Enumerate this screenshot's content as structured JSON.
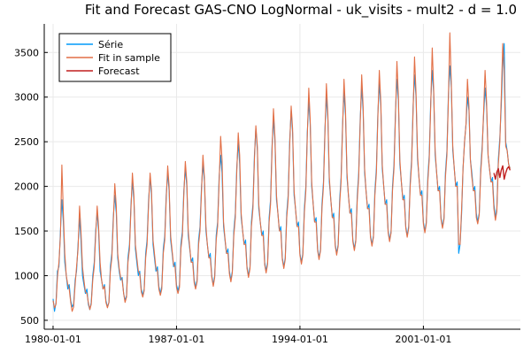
{
  "chart_data": {
    "type": "line",
    "title": "Fit and Forecast GAS-CNO LogNormal - uk_visits - mult2 - d = 1.0",
    "xlabel": "",
    "ylabel": "",
    "x_ticks": [
      "1980-01-01",
      "1987-01-01",
      "1994-01-01",
      "2001-01-01"
    ],
    "y_ticks": [
      "500",
      "1000",
      "1500",
      "2000",
      "2500",
      "3000",
      "3500"
    ],
    "xlim": [
      "1979-07-01",
      "2006-07-01"
    ],
    "ylim": [
      400,
      3820
    ],
    "grid": true,
    "legend_position": "top-left",
    "frequency": "monthly",
    "series": [
      {
        "name": "Série",
        "color": "#009af9",
        "start": "1980-01-01",
        "values": [
          740,
          600,
          700,
          1050,
          1100,
          1500,
          1850,
          1600,
          1150,
          1000,
          850,
          900,
          720,
          650,
          680,
          950,
          1050,
          1350,
          1650,
          1400,
          1000,
          900,
          800,
          850,
          680,
          620,
          700,
          1000,
          1150,
          1500,
          1700,
          1500,
          1050,
          950,
          850,
          900,
          720,
          650,
          700,
          1100,
          1250,
          1650,
          1900,
          1700,
          1200,
          1050,
          950,
          980,
          800,
          720,
          780,
          1200,
          1350,
          1800,
          2050,
          1850,
          1300,
          1150,
          1000,
          1050,
          850,
          780,
          850,
          1250,
          1400,
          1850,
          2100,
          1900,
          1350,
          1200,
          1050,
          1100,
          880,
          800,
          880,
          1300,
          1450,
          1900,
          2150,
          1950,
          1400,
          1250,
          1100,
          1150,
          900,
          830,
          900,
          1350,
          1500,
          1950,
          2200,
          2000,
          1450,
          1300,
          1150,
          1200,
          950,
          870,
          950,
          1400,
          1550,
          2000,
          2250,
          2050,
          1500,
          1350,
          1200,
          1250,
          1000,
          900,
          1000,
          1450,
          1600,
          2100,
          2350,
          2150,
          1550,
          1400,
          1250,
          1300,
          1050,
          950,
          1050,
          1500,
          1700,
          2200,
          2500,
          2250,
          1650,
          1500,
          1350,
          1400,
          1100,
          1000,
          1100,
          1600,
          1800,
          2350,
          2650,
          2400,
          1750,
          1600,
          1450,
          1500,
          1150,
          1050,
          1150,
          1650,
          1850,
          2450,
          2750,
          2500,
          1850,
          1700,
          1500,
          1550,
          1200,
          1100,
          1200,
          1700,
          1900,
          2500,
          2850,
          2600,
          1900,
          1750,
          1550,
          1600,
          1250,
          1150,
          1250,
          1750,
          2000,
          2600,
          2950,
          2700,
          2000,
          1800,
          1600,
          1650,
          1300,
          1200,
          1300,
          1800,
          2050,
          2650,
          3000,
          2750,
          2050,
          1850,
          1650,
          1700,
          1350,
          1250,
          1350,
          1850,
          2100,
          2700,
          3050,
          2800,
          2100,
          1900,
          1700,
          1750,
          1400,
          1300,
          1400,
          1900,
          2150,
          2750,
          3100,
          2850,
          2150,
          1950,
          1750,
          1800,
          1450,
          1350,
          1450,
          1950,
          2200,
          2800,
          3150,
          2900,
          2200,
          2000,
          1800,
          1850,
          1500,
          1400,
          1500,
          2000,
          2250,
          2850,
          3200,
          2950,
          2250,
          2050,
          1850,
          1900,
          1550,
          1450,
          1550,
          2050,
          2300,
          2900,
          3250,
          3000,
          2300,
          2100,
          1900,
          1950,
          1600,
          1500,
          1600,
          2100,
          2350,
          2950,
          3300,
          3050,
          2350,
          2150,
          1950,
          2000,
          1650,
          1550,
          1650,
          2150,
          2400,
          3000,
          3350,
          3100,
          2400,
          2200,
          2000,
          2050,
          1250,
          1350,
          1700,
          2200,
          2500,
          2700,
          3000,
          2850,
          2300,
          2150,
          1950,
          2000,
          1700,
          1600,
          1700,
          2200,
          2450,
          2800,
          3100,
          2900,
          2350,
          2200,
          2050,
          2100,
          1800,
          1650,
          1750,
          2300,
          2550,
          2900,
          3400,
          3600,
          2500,
          2400,
          2250,
          2200
        ],
        "fit_end": "2004-12-01"
      },
      {
        "name": "Fit in sample",
        "color": "#e26f46",
        "start": "1980-01-01",
        "values": [
          720,
          640,
          680,
          980,
          1150,
          1450,
          2240,
          1700,
          1250,
          1000,
          900,
          850,
          700,
          600,
          650,
          900,
          1100,
          1300,
          1780,
          1500,
          1100,
          950,
          820,
          800,
          700,
          620,
          680,
          950,
          1100,
          1450,
          1780,
          1550,
          1150,
          950,
          850,
          880,
          700,
          640,
          700,
          1050,
          1200,
          1600,
          2030,
          1780,
          1250,
          1080,
          980,
          950,
          800,
          700,
          760,
          1150,
          1300,
          1750,
          2150,
          1900,
          1350,
          1200,
          1050,
          1020,
          820,
          760,
          830,
          1200,
          1350,
          1800,
          2150,
          1950,
          1400,
          1250,
          1080,
          1050,
          850,
          780,
          850,
          1250,
          1400,
          1850,
          2230,
          2000,
          1450,
          1280,
          1120,
          1100,
          870,
          800,
          870,
          1300,
          1450,
          1900,
          2280,
          2050,
          1500,
          1320,
          1150,
          1150,
          920,
          850,
          930,
          1350,
          1500,
          1950,
          2350,
          2100,
          1550,
          1350,
          1200,
          1200,
          980,
          880,
          980,
          1400,
          1550,
          2050,
          2560,
          2300,
          1600,
          1420,
          1250,
          1250,
          1020,
          930,
          1030,
          1450,
          1650,
          2150,
          2600,
          2350,
          1700,
          1500,
          1350,
          1350,
          1080,
          980,
          1080,
          1550,
          1750,
          2300,
          2680,
          2450,
          1800,
          1600,
          1450,
          1450,
          1120,
          1030,
          1130,
          1600,
          1800,
          2400,
          2870,
          2550,
          1900,
          1700,
          1500,
          1500,
          1180,
          1080,
          1180,
          1650,
          1850,
          2450,
          2900,
          2650,
          1950,
          1750,
          1550,
          1550,
          1230,
          1130,
          1230,
          1700,
          1950,
          2550,
          3100,
          2750,
          2050,
          1800,
          1600,
          1600,
          1280,
          1180,
          1280,
          1750,
          2000,
          2600,
          3150,
          2800,
          2100,
          1850,
          1650,
          1650,
          1330,
          1230,
          1330,
          1800,
          2050,
          2650,
          3200,
          2850,
          2150,
          1900,
          1700,
          1700,
          1380,
          1280,
          1380,
          1850,
          2100,
          2700,
          3250,
          2900,
          2200,
          1950,
          1750,
          1750,
          1430,
          1330,
          1430,
          1900,
          2150,
          2750,
          3300,
          2950,
          2250,
          2000,
          1800,
          1800,
          1480,
          1380,
          1480,
          1950,
          2200,
          2800,
          3400,
          3000,
          2300,
          2050,
          1850,
          1850,
          1530,
          1430,
          1530,
          2000,
          2250,
          2850,
          3450,
          3050,
          2350,
          2100,
          1900,
          1900,
          1580,
          1480,
          1580,
          2050,
          2300,
          2900,
          3550,
          3100,
          2400,
          2150,
          1950,
          1950,
          1630,
          1530,
          1630,
          2100,
          2350,
          2950,
          3720,
          3150,
          2450,
          2200,
          2000,
          2000,
          1350,
          1350,
          1750,
          2200,
          2500,
          2700,
          3200,
          2900,
          2300,
          2100,
          1950,
          1950,
          1650,
          1580,
          1680,
          2150,
          2400,
          2850,
          3300,
          2950,
          2350,
          2200,
          2050,
          2050,
          1750,
          1620,
          1720,
          2250,
          2500,
          3000,
          3600,
          3300,
          2450,
          2400,
          2250,
          2200
        ]
      },
      {
        "name": "Forecast",
        "color": "#c01f1f",
        "start": "2005-01-01",
        "values": [
          2150,
          2080,
          2160,
          2200,
          2100,
          2180,
          2230,
          2080,
          2150,
          2200,
          2220,
          2180
        ]
      }
    ]
  }
}
